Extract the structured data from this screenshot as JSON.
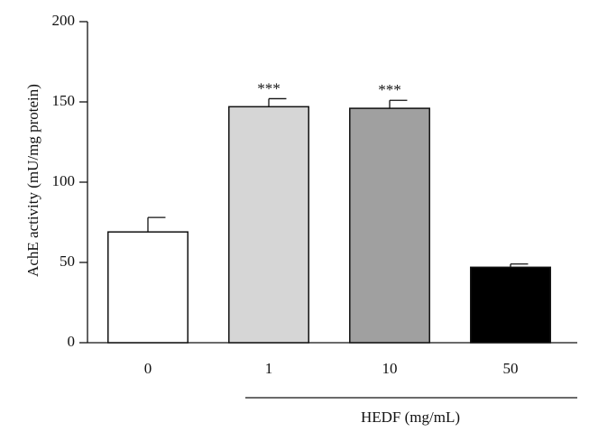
{
  "chart_data": {
    "type": "bar",
    "ylabel": "AchE activity (mU/mg protein)",
    "xlabel": "HEDF (mg/mL)",
    "categories": [
      "0",
      "1",
      "10",
      "50"
    ],
    "values": [
      69,
      147,
      146,
      47
    ],
    "errors": [
      9,
      5,
      5,
      2
    ],
    "colors": [
      "#ffffff",
      "#d6d6d6",
      "#a0a0a0",
      "#000000"
    ],
    "annotations": [
      null,
      "***",
      "***",
      null
    ],
    "ylim": [
      0,
      200
    ],
    "yticks": [
      0,
      50,
      100,
      150,
      200
    ],
    "grid": false
  }
}
